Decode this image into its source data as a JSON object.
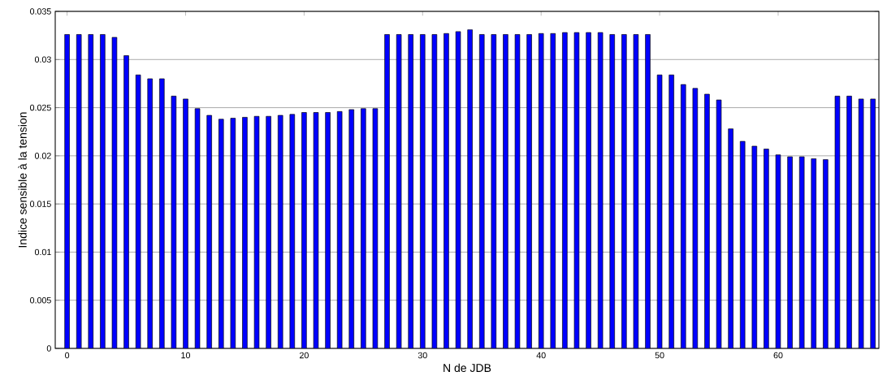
{
  "chart_data": {
    "type": "bar",
    "xlabel": "N de JDB",
    "ylabel": "Indice sensible à la tension",
    "x": [
      0,
      1,
      2,
      3,
      4,
      5,
      6,
      7,
      8,
      9,
      10,
      11,
      12,
      13,
      14,
      15,
      16,
      17,
      18,
      19,
      20,
      21,
      22,
      23,
      24,
      25,
      26,
      27,
      28,
      29,
      30,
      31,
      32,
      33,
      34,
      35,
      36,
      37,
      38,
      39,
      40,
      41,
      42,
      43,
      44,
      45,
      46,
      47,
      48,
      49,
      50,
      51,
      52,
      53,
      54,
      55,
      56,
      57,
      58,
      59,
      60,
      61,
      62,
      63,
      64,
      65,
      66,
      67,
      68
    ],
    "values": [
      0.0326,
      0.0326,
      0.0326,
      0.0326,
      0.0323,
      0.0304,
      0.0284,
      0.028,
      0.028,
      0.0262,
      0.0259,
      0.0249,
      0.0242,
      0.0238,
      0.0239,
      0.024,
      0.0241,
      0.0241,
      0.0242,
      0.0243,
      0.0245,
      0.0245,
      0.0245,
      0.0246,
      0.0248,
      0.0249,
      0.0249,
      0.0326,
      0.0326,
      0.0326,
      0.0326,
      0.0326,
      0.0327,
      0.0329,
      0.0331,
      0.0326,
      0.0326,
      0.0326,
      0.0326,
      0.0326,
      0.0327,
      0.0327,
      0.0328,
      0.0328,
      0.0328,
      0.0328,
      0.0326,
      0.0326,
      0.0326,
      0.0326,
      0.0284,
      0.0284,
      0.0274,
      0.027,
      0.0264,
      0.0258,
      0.0228,
      0.0215,
      0.021,
      0.0207,
      0.0201,
      0.0199,
      0.0199,
      0.0197,
      0.0196,
      0.0262,
      0.0262,
      0.0259,
      0.0259
    ],
    "color": "#0000ff",
    "xlim": [
      -1,
      68.5
    ],
    "ylim": [
      0,
      0.035
    ],
    "xticks": [
      0,
      10,
      20,
      30,
      40,
      50,
      60
    ],
    "yticks": [
      0,
      0.005,
      0.01,
      0.015,
      0.02,
      0.025,
      0.03,
      0.035
    ],
    "grid": "y"
  }
}
